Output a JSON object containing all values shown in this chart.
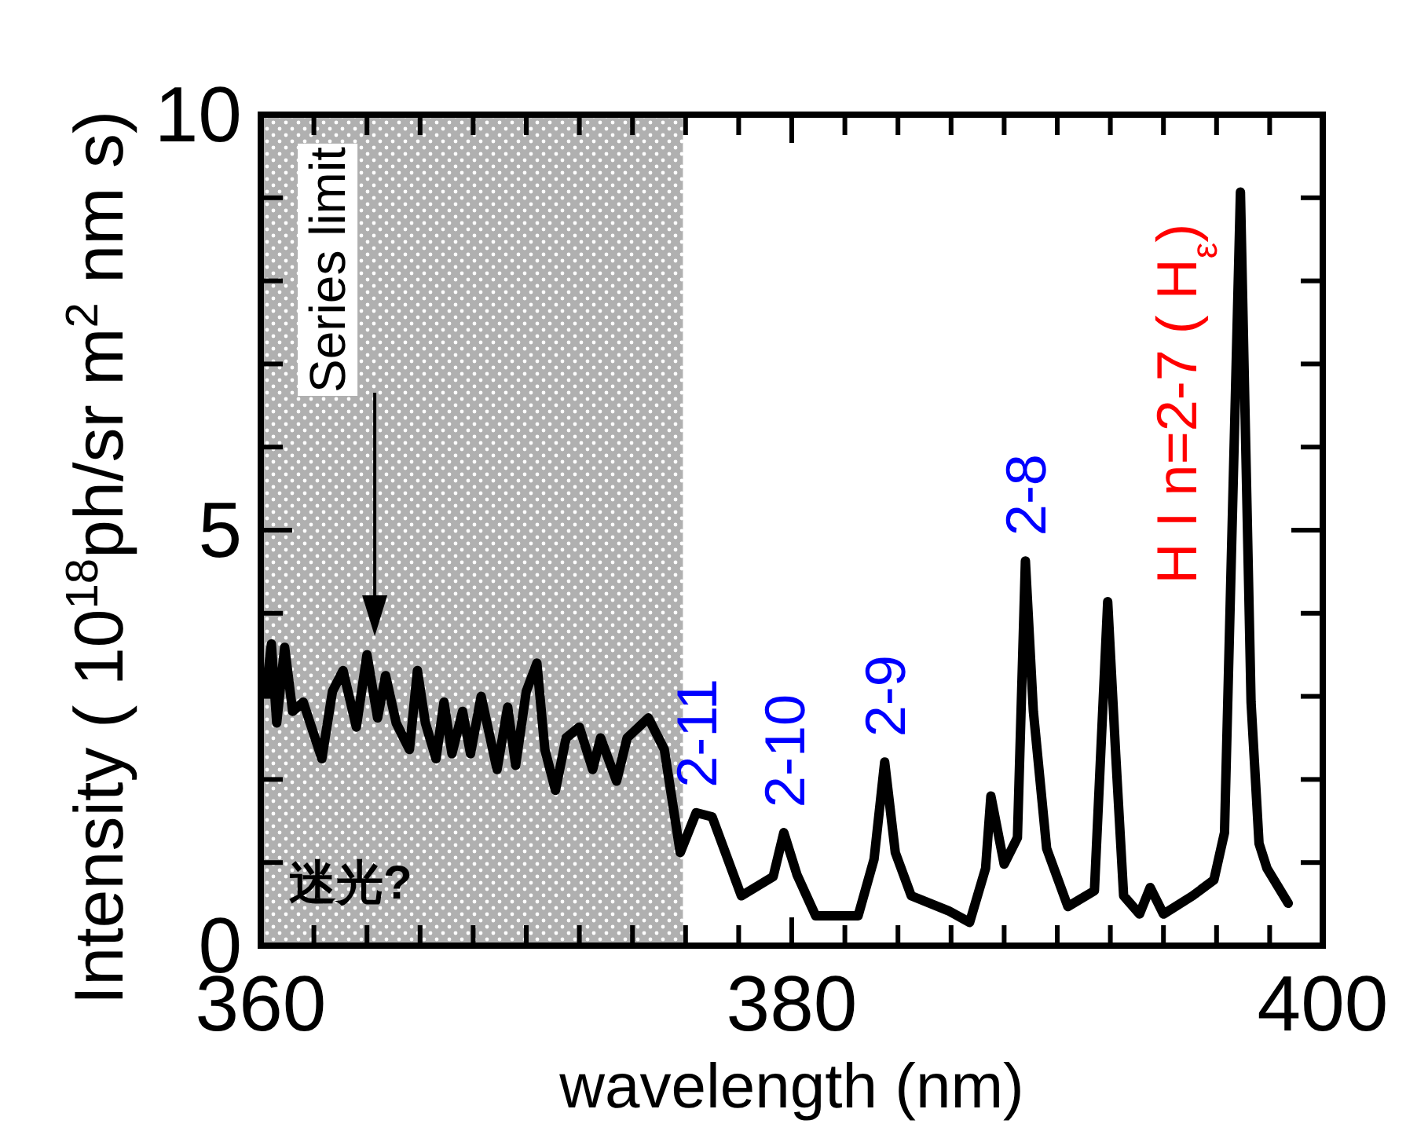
{
  "chart_data": {
    "type": "line",
    "xlabel": "wavelength (nm)",
    "ylabel": "Intensity ( 10$^{18}$ph/sr m$^{2}$ nm s)",
    "xlim": [
      360,
      400
    ],
    "ylim": [
      0,
      10
    ],
    "xticks": [
      360,
      {
        "value": 362,
        "label": null
      },
      {
        "value": 364,
        "label": null
      },
      {
        "value": 366,
        "label": null
      },
      {
        "value": 368,
        "label": null
      },
      {
        "value": 370,
        "label": null
      },
      {
        "value": 372,
        "label": null
      },
      {
        "value": 374,
        "label": null
      },
      {
        "value": 376,
        "label": null
      },
      {
        "value": 378,
        "label": null
      },
      380,
      {
        "value": 382,
        "label": null
      },
      {
        "value": 384,
        "label": null
      },
      {
        "value": 386,
        "label": null
      },
      {
        "value": 388,
        "label": null
      },
      {
        "value": 390,
        "label": null
      },
      {
        "value": 392,
        "label": null
      },
      {
        "value": 394,
        "label": null
      },
      {
        "value": 396,
        "label": null
      },
      {
        "value": 398,
        "label": null
      },
      400
    ],
    "yticks": [
      0,
      {
        "value": 1,
        "label": null
      },
      {
        "value": 2,
        "label": null
      },
      {
        "value": 3,
        "label": null
      },
      {
        "value": 4,
        "label": null
      },
      5,
      {
        "value": 6,
        "label": null
      },
      {
        "value": 7,
        "label": null
      },
      {
        "value": 8,
        "label": null
      },
      {
        "value": 9,
        "label": null
      },
      10
    ],
    "series": [
      {
        "color": "#000000",
        "line_style": "solid",
        "x": [
          360.2,
          360.4,
          360.6,
          360.9,
          361.2,
          361.6,
          362.3,
          362.7,
          363.1,
          363.6,
          364.0,
          364.4,
          364.7,
          365.1,
          365.6,
          365.9,
          366.2,
          366.6,
          366.9,
          367.2,
          367.6,
          367.9,
          368.3,
          368.9,
          369.3,
          369.6,
          370.0,
          370.4,
          370.7,
          371.1,
          371.5,
          372.0,
          372.5,
          372.8,
          373.4,
          373.8,
          374.6,
          375.2,
          375.8,
          376.4,
          377.0,
          378.1,
          379.3,
          379.7,
          380.2,
          380.9,
          382.5,
          383.1,
          383.5,
          383.9,
          384.5,
          385.9,
          386.7,
          387.3,
          387.5,
          388.0,
          388.5,
          388.8,
          389.1,
          389.6,
          390.4,
          391.4,
          391.9,
          392.2,
          392.5,
          393.1,
          393.5,
          394.0,
          395.1,
          395.9,
          396.3,
          396.9,
          397.3,
          397.6,
          397.9,
          398.7
        ],
        "values": [
          3.06,
          3.63,
          2.68,
          3.59,
          2.82,
          2.93,
          2.25,
          3.06,
          3.31,
          2.63,
          3.5,
          2.74,
          3.25,
          2.68,
          2.36,
          3.31,
          2.68,
          2.25,
          2.93,
          2.31,
          2.82,
          2.31,
          3.0,
          2.12,
          2.87,
          2.17,
          3.06,
          3.4,
          2.36,
          1.87,
          2.5,
          2.63,
          2.12,
          2.5,
          1.98,
          2.5,
          2.74,
          2.36,
          1.12,
          1.6,
          1.55,
          0.6,
          0.83,
          1.36,
          0.85,
          0.36,
          0.36,
          1.04,
          2.21,
          1.12,
          0.6,
          0.42,
          0.28,
          0.93,
          1.8,
          0.98,
          1.3,
          4.63,
          2.82,
          1.17,
          0.47,
          0.66,
          4.14,
          2.31,
          0.6,
          0.38,
          0.7,
          0.38,
          0.6,
          0.79,
          1.36,
          9.07,
          2.93,
          1.23,
          0.93,
          0.51
        ]
      }
    ],
    "bands": [
      {
        "axis": "x",
        "from": 360,
        "to": 375.9,
        "label": "迷光?",
        "color": "#b0b0b0"
      }
    ],
    "annotations": [
      "Series limit",
      {
        "text": "2-11",
        "x": 376.4,
        "y": 1.6
      },
      {
        "text": "2-10",
        "x": 379.7,
        "y": 1.36
      },
      {
        "text": "2-9",
        "x": 383.5,
        "y": 2.21
      },
      {
        "text": "2-8",
        "x": 388.8,
        "y": 4.63
      },
      "H I n=2-7 ( H$_{ε}$)"
    ]
  }
}
